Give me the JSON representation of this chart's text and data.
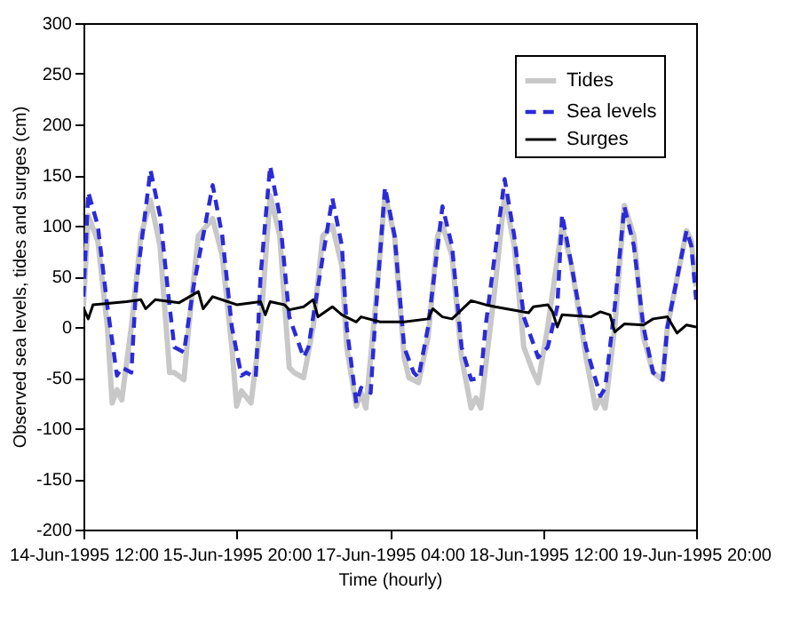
{
  "chart_data": {
    "type": "line",
    "xlabel": "Time (hourly)",
    "ylabel": "Observed sea levels, tides and surges (cm)",
    "xlim": [
      "1995-06-14T12:00",
      "1995-06-19T20:00"
    ],
    "xticks": [
      {
        "value": "1995-06-14T12:00",
        "label": "14-Jun-1995 12:00"
      },
      {
        "value": "1995-06-15T20:00",
        "label": "15-Jun-1995 20:00"
      },
      {
        "value": "1995-06-17T04:00",
        "label": "17-Jun-1995 04:00"
      },
      {
        "value": "1995-06-18T12:00",
        "label": "18-Jun-1995 12:00"
      },
      {
        "value": "1995-06-19T20:00",
        "label": "19-Jun-1995 20:00"
      }
    ],
    "ylim": [
      -200,
      300
    ],
    "yticks": [
      -200,
      -150,
      -100,
      -50,
      0,
      50,
      100,
      150,
      200,
      250,
      300
    ],
    "grid": false,
    "legend": "top right",
    "series": [
      {
        "name": "Tides",
        "color": "#c8c8c8",
        "line_style": "solid",
        "x": [
          "1995-06-14T12:00",
          "1995-06-14T13:00",
          "1995-06-14T15:00",
          "1995-06-14T17:00",
          "1995-06-14T18:00",
          "1995-06-14T19:00",
          "1995-06-14T20:00",
          "1995-06-14T22:00",
          "1995-06-15T00:00",
          "1995-06-15T02:00",
          "1995-06-15T04:00",
          "1995-06-15T06:00",
          "1995-06-15T07:00",
          "1995-06-15T09:00",
          "1995-06-15T10:00",
          "1995-06-15T12:00",
          "1995-06-15T15:00",
          "1995-06-15T17:00",
          "1995-06-15T19:00",
          "1995-06-15T20:00",
          "1995-06-15T21:00",
          "1995-06-15T23:00",
          "1995-06-16T01:00",
          "1995-06-16T03:00",
          "1995-06-16T05:00",
          "1995-06-16T07:00",
          "1995-06-16T08:00",
          "1995-06-16T10:00",
          "1995-06-16T12:00",
          "1995-06-16T14:00",
          "1995-06-16T16:00",
          "1995-06-16T18:00",
          "1995-06-16T19:00",
          "1995-06-16T21:00",
          "1995-06-16T22:00",
          "1995-06-16T23:00",
          "1995-06-17T01:00",
          "1995-06-17T03:00",
          "1995-06-17T05:00",
          "1995-06-17T07:00",
          "1995-06-17T08:00",
          "1995-06-17T10:00",
          "1995-06-17T12:00",
          "1995-06-17T14:00",
          "1995-06-17T15:00",
          "1995-06-17T17:00",
          "1995-06-17T19:00",
          "1995-06-17T21:00",
          "1995-06-17T22:00",
          "1995-06-17T23:00",
          "1995-06-18T02:00",
          "1995-06-18T04:00",
          "1995-06-18T06:00",
          "1995-06-18T08:00",
          "1995-06-18T10:00",
          "1995-06-18T11:00",
          "1995-06-18T13:00",
          "1995-06-18T16:00",
          "1995-06-18T18:00",
          "1995-06-18T21:00",
          "1995-06-18T23:00",
          "1995-06-19T00:00",
          "1995-06-19T01:00",
          "1995-06-19T03:00",
          "1995-06-19T05:00",
          "1995-06-19T07:00",
          "1995-06-19T09:00",
          "1995-06-19T11:00",
          "1995-06-19T13:00",
          "1995-06-19T14:00",
          "1995-06-19T18:00",
          "1995-06-19T19:00",
          "1995-06-19T20:00"
        ],
        "values": [
          20,
          110,
          85,
          0,
          -75,
          -62,
          -72,
          0,
          90,
          125,
          80,
          -45,
          -45,
          -52,
          0,
          90,
          107,
          70,
          -20,
          -78,
          -63,
          -75,
          0,
          130,
          90,
          -40,
          -45,
          -50,
          0,
          90,
          100,
          60,
          -20,
          -78,
          -65,
          -80,
          20,
          130,
          90,
          -30,
          -50,
          -55,
          -10,
          90,
          101,
          70,
          -30,
          -80,
          -70,
          -80,
          40,
          130,
          80,
          -20,
          -45,
          -55,
          0,
          100,
          60,
          -30,
          -80,
          -70,
          -80,
          0,
          120,
          90,
          -10,
          -45,
          -52,
          0,
          95,
          85,
          40
        ]
      },
      {
        "name": "Sea levels",
        "color": "#2b2bd6",
        "line_style": "dashed",
        "x": [
          "1995-06-14T12:00",
          "1995-06-14T13:00",
          "1995-06-14T15:00",
          "1995-06-14T17:00",
          "1995-06-14T19:00",
          "1995-06-14T20:00",
          "1995-06-14T22:00",
          "1995-06-14T23:00",
          "1995-06-15T02:00",
          "1995-06-15T04:00",
          "1995-06-15T06:00",
          "1995-06-15T07:00",
          "1995-06-15T09:00",
          "1995-06-15T11:00",
          "1995-06-15T15:00",
          "1995-06-15T17:00",
          "1995-06-15T19:00",
          "1995-06-15T21:00",
          "1995-06-15T22:00",
          "1995-06-16T00:00",
          "1995-06-16T01:00",
          "1995-06-16T03:00",
          "1995-06-16T05:00",
          "1995-06-16T07:00",
          "1995-06-16T10:00",
          "1995-06-16T11:00",
          "1995-06-16T13:00",
          "1995-06-16T16:00",
          "1995-06-16T18:00",
          "1995-06-16T19:00",
          "1995-06-16T21:00",
          "1995-06-16T22:00",
          "1995-06-17T00:00",
          "1995-06-17T01:00",
          "1995-06-17T03:00",
          "1995-06-17T05:00",
          "1995-06-17T07:00",
          "1995-06-17T09:00",
          "1995-06-17T10:00",
          "1995-06-17T12:00",
          "1995-06-17T15:00",
          "1995-06-17T17:00",
          "1995-06-17T19:00",
          "1995-06-17T21:00",
          "1995-06-17T23:00",
          "1995-06-18T00:00",
          "1995-06-18T04:00",
          "1995-06-18T06:00",
          "1995-06-18T08:00",
          "1995-06-18T11:00",
          "1995-06-18T13:00",
          "1995-06-18T15:00",
          "1995-06-18T16:00",
          "1995-06-18T18:00",
          "1995-06-18T21:00",
          "1995-06-19T00:00",
          "1995-06-19T01:00",
          "1995-06-19T03:00",
          "1995-06-19T05:00",
          "1995-06-19T07:00",
          "1995-06-19T09:00",
          "1995-06-19T11:00",
          "1995-06-19T13:00",
          "1995-06-19T14:00",
          "1995-06-19T18:00",
          "1995-06-19T19:00",
          "1995-06-19T20:00"
        ],
        "values": [
          30,
          133,
          100,
          20,
          -48,
          -40,
          -45,
          40,
          155,
          110,
          20,
          -20,
          -25,
          40,
          140,
          90,
          0,
          -48,
          -45,
          -50,
          50,
          159,
          110,
          10,
          -30,
          -20,
          40,
          127,
          80,
          0,
          -75,
          -60,
          -65,
          10,
          138,
          90,
          -20,
          -45,
          -50,
          0,
          119,
          80,
          -20,
          -52,
          -50,
          0,
          146,
          90,
          10,
          -30,
          -20,
          20,
          111,
          60,
          -20,
          -68,
          -60,
          20,
          119,
          80,
          0,
          -45,
          -52,
          0,
          95,
          80,
          27
        ]
      },
      {
        "name": "Surges",
        "color": "#000000",
        "line_style": "solid",
        "x": [
          "1995-06-14T12:00",
          "1995-06-14T13:00",
          "1995-06-14T14:00",
          "1995-06-14T21:00",
          "1995-06-15T00:00",
          "1995-06-15T01:00",
          "1995-06-15T03:00",
          "1995-06-15T08:00",
          "1995-06-15T12:00",
          "1995-06-15T13:00",
          "1995-06-15T15:00",
          "1995-06-15T20:00",
          "1995-06-16T01:00",
          "1995-06-16T02:00",
          "1995-06-16T03:00",
          "1995-06-16T06:00",
          "1995-06-16T07:00",
          "1995-06-16T10:00",
          "1995-06-16T12:00",
          "1995-06-16T13:00",
          "1995-06-16T16:00",
          "1995-06-16T18:00",
          "1995-06-16T21:00",
          "1995-06-16T22:00",
          "1995-06-17T02:00",
          "1995-06-17T07:00",
          "1995-06-17T12:00",
          "1995-06-17T13:00",
          "1995-06-17T15:00",
          "1995-06-17T17:00",
          "1995-06-17T21:00",
          "1995-06-18T00:00",
          "1995-06-18T02:00",
          "1995-06-18T09:00",
          "1995-06-18T10:00",
          "1995-06-18T13:00",
          "1995-06-18T14:00",
          "1995-06-18T15:00",
          "1995-06-18T16:00",
          "1995-06-18T22:00",
          "1995-06-19T00:00",
          "1995-06-19T02:00",
          "1995-06-19T03:00",
          "1995-06-19T05:00",
          "1995-06-19T09:00",
          "1995-06-19T11:00",
          "1995-06-19T14:00",
          "1995-06-19T16:00",
          "1995-06-19T18:00",
          "1995-06-19T20:00"
        ],
        "values": [
          19,
          8,
          22,
          25,
          27,
          18,
          27,
          24,
          35,
          18,
          30,
          22,
          25,
          12,
          25,
          22,
          17,
          20,
          27,
          10,
          20,
          12,
          5,
          10,
          5,
          5,
          8,
          18,
          10,
          8,
          26,
          22,
          20,
          14,
          20,
          22,
          15,
          0,
          12,
          10,
          15,
          12,
          -5,
          3,
          2,
          8,
          10,
          -6,
          2,
          0
        ]
      }
    ]
  }
}
